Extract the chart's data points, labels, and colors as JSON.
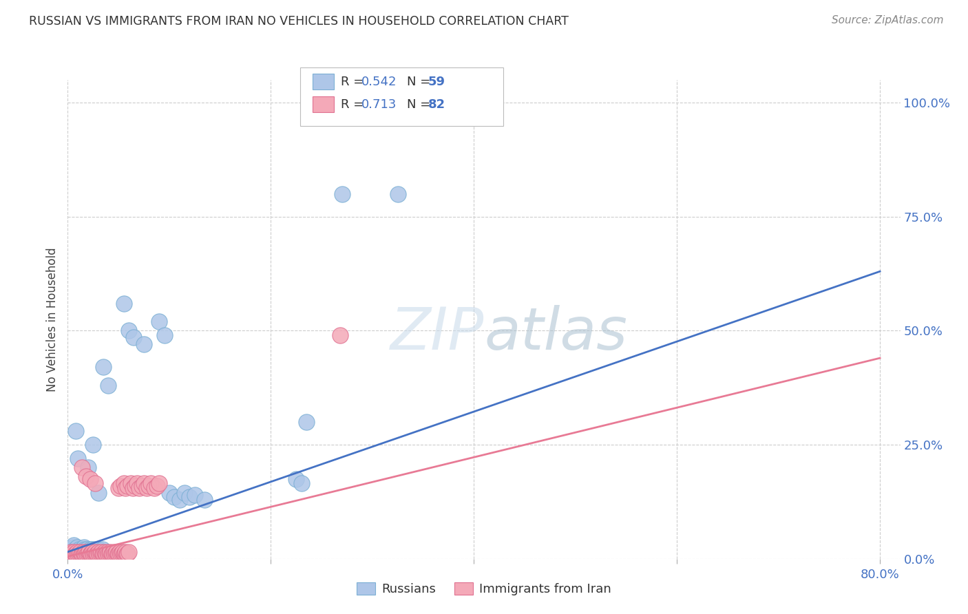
{
  "title": "RUSSIAN VS IMMIGRANTS FROM IRAN NO VEHICLES IN HOUSEHOLD CORRELATION CHART",
  "source": "Source: ZipAtlas.com",
  "xlabel_ticks": [
    "0.0%",
    "",
    "",
    "",
    "80.0%"
  ],
  "xlabel_tick_vals": [
    0.0,
    0.2,
    0.4,
    0.6,
    0.8
  ],
  "ylabel_ticks": [
    "100.0%",
    "75.0%",
    "50.0%",
    "25.0%",
    "0.0%"
  ],
  "ylabel_tick_vals": [
    1.0,
    0.75,
    0.5,
    0.25,
    0.0
  ],
  "ylabel_label": "No Vehicles in Household",
  "legend_entries": [
    {
      "label": "Russians",
      "color": "#aec6e8",
      "edge": "#7bafd4",
      "R": "0.542",
      "N": "59"
    },
    {
      "label": "Immigrants from Iran",
      "color": "#f4a9b8",
      "edge": "#e07090",
      "R": "0.713",
      "N": "82"
    }
  ],
  "blue_line_color": "#4472c4",
  "pink_line_color": "#e87a95",
  "watermark": "ZIPatlas",
  "blue_scatter": [
    [
      0.003,
      0.02
    ],
    [
      0.004,
      0.015
    ],
    [
      0.005,
      0.025
    ],
    [
      0.006,
      0.03
    ],
    [
      0.007,
      0.02
    ],
    [
      0.008,
      0.01
    ],
    [
      0.009,
      0.025
    ],
    [
      0.01,
      0.015
    ],
    [
      0.011,
      0.02
    ],
    [
      0.012,
      0.015
    ],
    [
      0.013,
      0.01
    ],
    [
      0.014,
      0.02
    ],
    [
      0.015,
      0.015
    ],
    [
      0.016,
      0.025
    ],
    [
      0.017,
      0.02
    ],
    [
      0.018,
      0.015
    ],
    [
      0.019,
      0.02
    ],
    [
      0.02,
      0.015
    ],
    [
      0.021,
      0.01
    ],
    [
      0.022,
      0.02
    ],
    [
      0.023,
      0.015
    ],
    [
      0.024,
      0.02
    ],
    [
      0.025,
      0.01
    ],
    [
      0.026,
      0.015
    ],
    [
      0.027,
      0.02
    ],
    [
      0.028,
      0.015
    ],
    [
      0.029,
      0.01
    ],
    [
      0.03,
      0.02
    ],
    [
      0.031,
      0.015
    ],
    [
      0.032,
      0.01
    ],
    [
      0.033,
      0.015
    ],
    [
      0.034,
      0.02
    ],
    [
      0.035,
      0.015
    ],
    [
      0.008,
      0.28
    ],
    [
      0.01,
      0.22
    ],
    [
      0.02,
      0.2
    ],
    [
      0.025,
      0.25
    ],
    [
      0.03,
      0.145
    ],
    [
      0.035,
      0.42
    ],
    [
      0.04,
      0.38
    ],
    [
      0.055,
      0.56
    ],
    [
      0.06,
      0.5
    ],
    [
      0.065,
      0.485
    ],
    [
      0.075,
      0.47
    ],
    [
      0.09,
      0.52
    ],
    [
      0.095,
      0.49
    ],
    [
      0.1,
      0.145
    ],
    [
      0.105,
      0.135
    ],
    [
      0.11,
      0.13
    ],
    [
      0.115,
      0.145
    ],
    [
      0.12,
      0.135
    ],
    [
      0.125,
      0.14
    ],
    [
      0.135,
      0.13
    ],
    [
      0.225,
      0.175
    ],
    [
      0.23,
      0.165
    ],
    [
      0.235,
      0.3
    ],
    [
      0.27,
      0.8
    ],
    [
      0.325,
      0.8
    ]
  ],
  "pink_scatter": [
    [
      0.001,
      0.01
    ],
    [
      0.002,
      0.012
    ],
    [
      0.003,
      0.015
    ],
    [
      0.004,
      0.01
    ],
    [
      0.005,
      0.012
    ],
    [
      0.006,
      0.015
    ],
    [
      0.007,
      0.01
    ],
    [
      0.008,
      0.012
    ],
    [
      0.009,
      0.015
    ],
    [
      0.01,
      0.01
    ],
    [
      0.011,
      0.012
    ],
    [
      0.012,
      0.015
    ],
    [
      0.013,
      0.01
    ],
    [
      0.014,
      0.012
    ],
    [
      0.015,
      0.015
    ],
    [
      0.016,
      0.01
    ],
    [
      0.017,
      0.012
    ],
    [
      0.018,
      0.015
    ],
    [
      0.019,
      0.01
    ],
    [
      0.02,
      0.012
    ],
    [
      0.021,
      0.015
    ],
    [
      0.022,
      0.01
    ],
    [
      0.023,
      0.012
    ],
    [
      0.024,
      0.015
    ],
    [
      0.025,
      0.01
    ],
    [
      0.026,
      0.012
    ],
    [
      0.027,
      0.015
    ],
    [
      0.028,
      0.01
    ],
    [
      0.029,
      0.012
    ],
    [
      0.03,
      0.015
    ],
    [
      0.031,
      0.01
    ],
    [
      0.032,
      0.012
    ],
    [
      0.033,
      0.015
    ],
    [
      0.034,
      0.01
    ],
    [
      0.035,
      0.012
    ],
    [
      0.036,
      0.015
    ],
    [
      0.037,
      0.01
    ],
    [
      0.038,
      0.012
    ],
    [
      0.039,
      0.015
    ],
    [
      0.04,
      0.01
    ],
    [
      0.041,
      0.012
    ],
    [
      0.042,
      0.015
    ],
    [
      0.043,
      0.01
    ],
    [
      0.044,
      0.012
    ],
    [
      0.045,
      0.015
    ],
    [
      0.046,
      0.01
    ],
    [
      0.047,
      0.012
    ],
    [
      0.048,
      0.015
    ],
    [
      0.049,
      0.01
    ],
    [
      0.05,
      0.012
    ],
    [
      0.051,
      0.015
    ],
    [
      0.052,
      0.01
    ],
    [
      0.053,
      0.012
    ],
    [
      0.054,
      0.015
    ],
    [
      0.055,
      0.01
    ],
    [
      0.056,
      0.012
    ],
    [
      0.057,
      0.015
    ],
    [
      0.058,
      0.01
    ],
    [
      0.059,
      0.012
    ],
    [
      0.06,
      0.015
    ],
    [
      0.014,
      0.2
    ],
    [
      0.018,
      0.18
    ],
    [
      0.022,
      0.175
    ],
    [
      0.027,
      0.165
    ],
    [
      0.05,
      0.155
    ],
    [
      0.052,
      0.16
    ],
    [
      0.055,
      0.165
    ],
    [
      0.057,
      0.155
    ],
    [
      0.059,
      0.16
    ],
    [
      0.062,
      0.165
    ],
    [
      0.064,
      0.155
    ],
    [
      0.066,
      0.16
    ],
    [
      0.068,
      0.165
    ],
    [
      0.07,
      0.155
    ],
    [
      0.073,
      0.16
    ],
    [
      0.075,
      0.165
    ],
    [
      0.078,
      0.155
    ],
    [
      0.08,
      0.16
    ],
    [
      0.082,
      0.165
    ],
    [
      0.085,
      0.155
    ],
    [
      0.088,
      0.16
    ],
    [
      0.09,
      0.165
    ],
    [
      0.268,
      0.49
    ]
  ],
  "blue_line_x": [
    0.0,
    0.8
  ],
  "blue_line_y": [
    0.015,
    0.63
  ],
  "pink_line_x": [
    0.0,
    0.8
  ],
  "pink_line_y": [
    0.005,
    0.44
  ],
  "xlim": [
    0.0,
    0.82
  ],
  "ylim": [
    0.0,
    1.05
  ],
  "bg_color": "#ffffff",
  "grid_color": "#cccccc",
  "title_color": "#333333",
  "tick_color": "#4472c4",
  "axis_color": "#999999"
}
